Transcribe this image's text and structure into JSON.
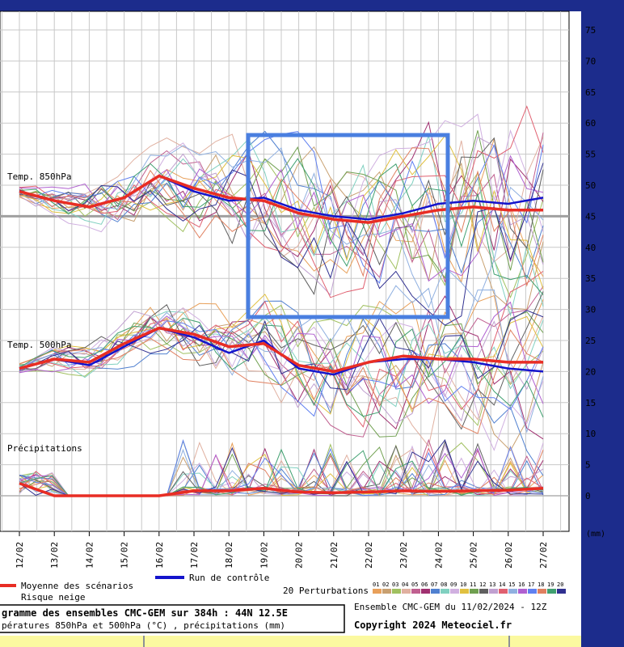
{
  "chart_data": {
    "type": "line",
    "x_dates": [
      "12/02",
      "13/02",
      "14/02",
      "15/02",
      "16/02",
      "17/02",
      "18/02",
      "19/02",
      "20/02",
      "21/02",
      "22/02",
      "23/02",
      "24/02",
      "25/02",
      "26/02",
      "27/02"
    ],
    "right_axis_ticks": [
      0,
      5,
      10,
      15,
      20,
      25,
      30,
      35,
      40,
      45,
      50,
      55,
      60,
      65,
      70,
      75
    ],
    "ylim": [
      -5,
      78
    ],
    "unit_label": "(mm)",
    "panels": [
      {
        "label": "Temp. 850hPa",
        "reference": 45
      },
      {
        "label": "Temp. 500hPa"
      },
      {
        "label": "Précipitations"
      }
    ],
    "mean_850": [
      49,
      47.5,
      46.5,
      48,
      51.5,
      49.5,
      48,
      47.5,
      45.5,
      44.5,
      44,
      45,
      46,
      46.5,
      46,
      46
    ],
    "control_850": [
      49,
      47.5,
      46.5,
      48,
      51.5,
      49,
      47.5,
      48,
      46,
      45,
      44.5,
      45.5,
      47,
      47.5,
      47,
      48
    ],
    "mean_500": [
      20.5,
      22,
      21.5,
      24.5,
      27,
      26,
      24,
      24.5,
      21,
      20,
      21.5,
      22.5,
      22,
      22,
      21.5,
      21.5
    ],
    "control_500": [
      20.5,
      22,
      21,
      24,
      27,
      25.5,
      23,
      25,
      20.5,
      19.5,
      21.5,
      22,
      22,
      21.5,
      20.5,
      20
    ],
    "mean_precip": [
      2,
      0,
      0,
      0,
      0,
      0.8,
      0.8,
      1.2,
      0.6,
      0.5,
      0.6,
      0.8,
      0.7,
      0.8,
      0.9,
      1.2
    ],
    "legend": {
      "mean": "Moyenne des scénarios",
      "control": "Run de contrôle",
      "snow": "Risque neige",
      "perturbations": "20 Perturbations",
      "member_ids": [
        "01",
        "02",
        "03",
        "04",
        "05",
        "06",
        "07",
        "08",
        "09",
        "10",
        "11",
        "12",
        "13",
        "14",
        "15",
        "16",
        "17",
        "18",
        "19",
        "20"
      ]
    },
    "member_colors": [
      "#e8a05a",
      "#c8a070",
      "#a0c060",
      "#e0b0a0",
      "#c06090",
      "#a03070",
      "#5080d0",
      "#80d0c0",
      "#d0b0e0",
      "#e0c040",
      "#70a050",
      "#606060",
      "#c0a0d0",
      "#e06070",
      "#90b0e0",
      "#b060d0",
      "#6080f0",
      "#e08060",
      "#40a070",
      "#303090"
    ],
    "colors": {
      "mean": "#e82d24",
      "control": "#1414cc",
      "highlight_box": "#4a7fe0",
      "reference": "#a0a0a0"
    }
  },
  "footer": {
    "title": "gramme des ensembles CMC-GEM sur 384h : 44N 12.5E",
    "subtitle": "pératures 850hPa et 500hPa (°C) , précipitations (mm)",
    "run_info": "Ensemble CMC-GEM du 11/02/2024 - 12Z",
    "copyright": "Copyright 2024 Meteociel.fr"
  }
}
